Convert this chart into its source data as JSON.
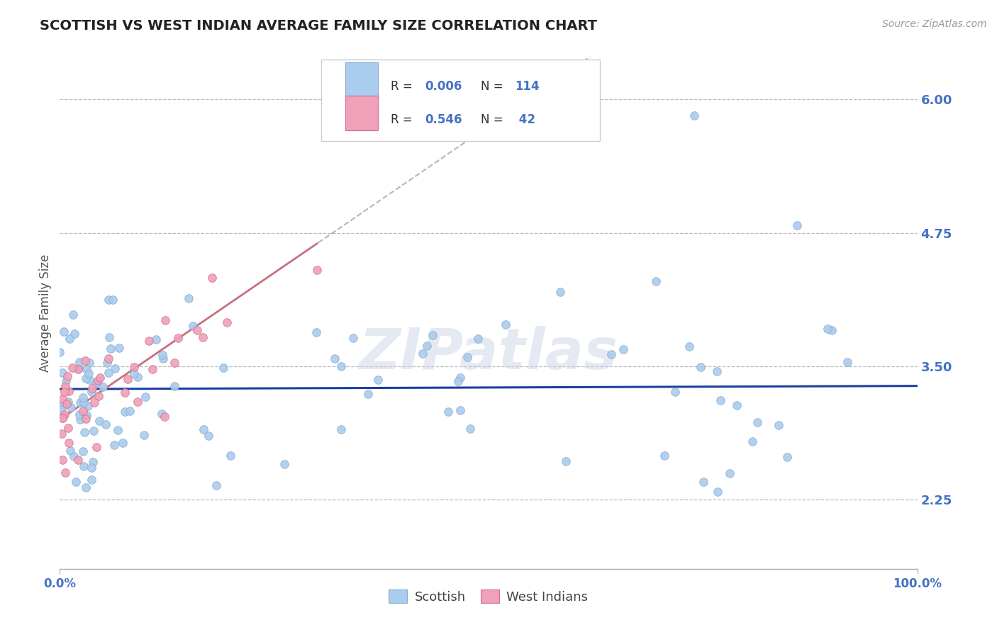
{
  "title": "SCOTTISH VS WEST INDIAN AVERAGE FAMILY SIZE CORRELATION CHART",
  "source_text": "Source: ZipAtlas.com",
  "ylabel": "Average Family Size",
  "xmin": 0.0,
  "xmax": 100.0,
  "ymin": 1.6,
  "ymax": 6.4,
  "yticks": [
    2.25,
    3.5,
    4.75,
    6.0
  ],
  "xticks": [
    0.0,
    100.0
  ],
  "xticklabels": [
    "0.0%",
    "100.0%"
  ],
  "background_color": "#ffffff",
  "grid_color": "#bbbbbb",
  "title_color": "#222222",
  "title_fontsize": 14,
  "axis_label_color": "#555555",
  "tick_color": "#4472c4",
  "scottish_color": "#aaccee",
  "scottish_edge_color": "#88aacc",
  "west_indian_color": "#f0a0b8",
  "west_indian_edge_color": "#cc7090",
  "scottish_line_color": "#1a3fa0",
  "west_indian_line_color": "#c87080",
  "west_indian_dash_color": "#c0b0b8",
  "legend_label1": "Scottish",
  "legend_label2": "West Indians",
  "watermark": "ZIPatlas",
  "scottish_N": 114,
  "west_indian_N": 42
}
